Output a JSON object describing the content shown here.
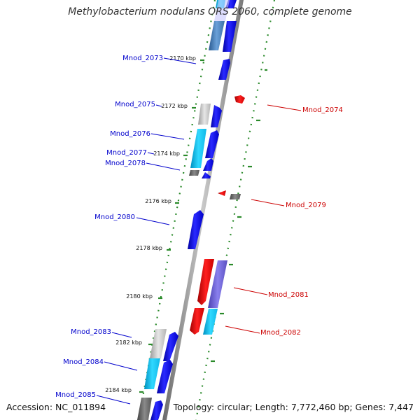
{
  "title": "Methylobacterium nodulans ORS 2060, complete genome",
  "accession": "Accession: NC_011894",
  "summary": "Topology: circular; Length: 7,772,460 bp; Genes: 7,447",
  "colors": {
    "forward_label": "#0000cc",
    "reverse_label": "#cc0000",
    "gc_ticks": "#2a8a2a",
    "backbone": "#8c8c8c"
  },
  "kbp_marks": [
    {
      "label": "2170 kbp"
    },
    {
      "label": "2172 kbp"
    },
    {
      "label": "2174 kbp"
    },
    {
      "label": "2176 kbp"
    },
    {
      "label": "2178 kbp"
    },
    {
      "label": "2180 kbp"
    },
    {
      "label": "2182 kbp"
    },
    {
      "label": "2184 kbp"
    }
  ],
  "genes_forward": [
    {
      "name": "Mnod_2073"
    },
    {
      "name": "Mnod_2075"
    },
    {
      "name": "Mnod_2076"
    },
    {
      "name": "Mnod_2077"
    },
    {
      "name": "Mnod_2078"
    },
    {
      "name": "Mnod_2080"
    },
    {
      "name": "Mnod_2083"
    },
    {
      "name": "Mnod_2084"
    },
    {
      "name": "Mnod_2085"
    }
  ],
  "genes_reverse": [
    {
      "name": "Mnod_2074"
    },
    {
      "name": "Mnod_2079"
    },
    {
      "name": "Mnod_2081"
    },
    {
      "name": "Mnod_2082"
    }
  ]
}
